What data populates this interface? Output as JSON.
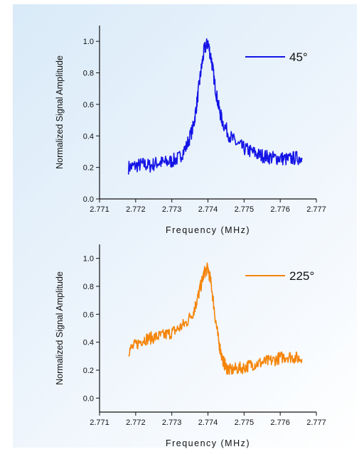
{
  "chart_data": [
    {
      "type": "line",
      "title": "",
      "xlabel": "Frequency (MHz)",
      "ylabel": "Normalized Signal Amplitude",
      "xlim": [
        2.771,
        2.777
      ],
      "ylim": [
        0.0,
        1.1
      ],
      "x_ticks": [
        "2.771",
        "2.772",
        "2.773",
        "2.774",
        "2.775",
        "2.776",
        "2.777"
      ],
      "y_ticks": [
        "0.0",
        "0.2",
        "0.4",
        "0.6",
        "0.8",
        "1.0"
      ],
      "grid": false,
      "legend_position": "top-right",
      "series": [
        {
          "name": "45°",
          "color": "#1414e6",
          "x": [
            2.7718,
            2.772,
            2.7722,
            2.7724,
            2.7726,
            2.7728,
            2.773,
            2.7732,
            2.7734,
            2.7736,
            2.7737,
            2.7738,
            2.7739,
            2.774,
            2.7741,
            2.7742,
            2.7743,
            2.7744,
            2.7746,
            2.7748,
            2.775,
            2.7752,
            2.7754,
            2.7756,
            2.7758,
            2.776,
            2.7762,
            2.7764,
            2.7766
          ],
          "y": [
            0.2,
            0.21,
            0.22,
            0.21,
            0.23,
            0.23,
            0.24,
            0.26,
            0.33,
            0.46,
            0.62,
            0.8,
            0.95,
            0.99,
            0.88,
            0.71,
            0.58,
            0.49,
            0.4,
            0.35,
            0.32,
            0.3,
            0.28,
            0.27,
            0.26,
            0.26,
            0.25,
            0.26,
            0.26
          ]
        }
      ]
    },
    {
      "type": "line",
      "title": "",
      "xlabel": "Frequency (MHz)",
      "ylabel": "Normalized Signal Amplitude",
      "xlim": [
        2.771,
        2.777
      ],
      "ylim": [
        -0.1,
        1.1
      ],
      "x_ticks": [
        "2.771",
        "2.772",
        "2.773",
        "2.774",
        "2.775",
        "2.776",
        "2.777"
      ],
      "y_ticks": [
        "0.0",
        "0.2",
        "0.4",
        "0.6",
        "0.8",
        "1.0"
      ],
      "grid": false,
      "legend_position": "top-right",
      "series": [
        {
          "name": "225°",
          "color": "#f5850a",
          "x": [
            2.7718,
            2.772,
            2.7722,
            2.7724,
            2.7726,
            2.7728,
            2.773,
            2.7732,
            2.7734,
            2.7736,
            2.7737,
            2.7738,
            2.7739,
            2.774,
            2.7741,
            2.7742,
            2.7743,
            2.7744,
            2.7745,
            2.7746,
            2.7748,
            2.775,
            2.7752,
            2.7754,
            2.7756,
            2.7758,
            2.776,
            2.7762,
            2.7764,
            2.7766
          ],
          "y": [
            0.34,
            0.38,
            0.42,
            0.43,
            0.44,
            0.45,
            0.47,
            0.5,
            0.54,
            0.62,
            0.7,
            0.8,
            0.9,
            0.93,
            0.8,
            0.58,
            0.4,
            0.28,
            0.22,
            0.2,
            0.21,
            0.22,
            0.24,
            0.25,
            0.26,
            0.27,
            0.29,
            0.3,
            0.29,
            0.28
          ]
        }
      ]
    }
  ]
}
